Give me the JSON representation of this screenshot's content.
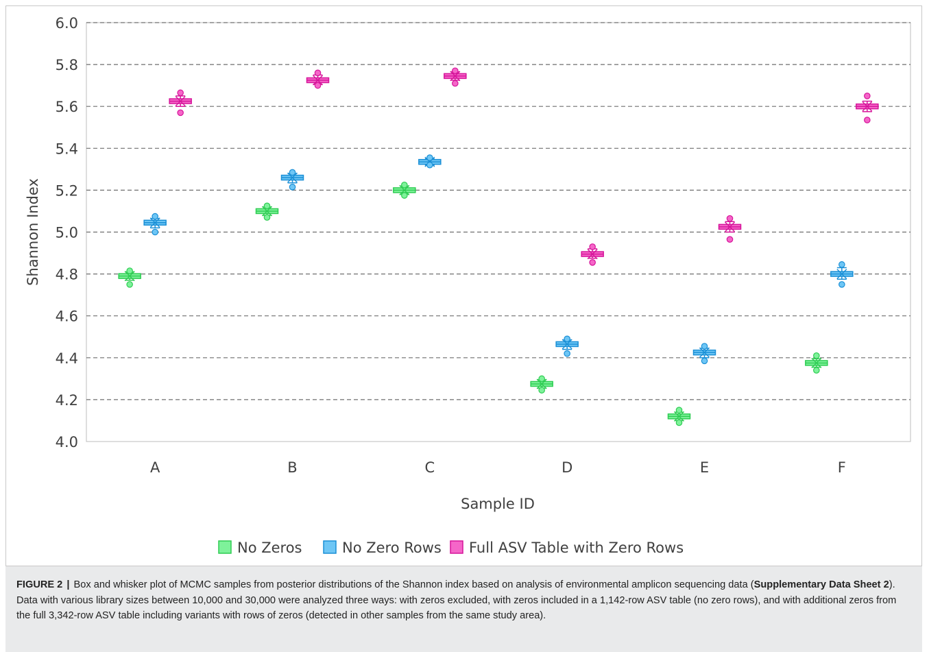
{
  "chart_data": {
    "type": "box",
    "title": "",
    "xlabel": "Sample ID",
    "ylabel": "Shannon Index",
    "ylim": [
      4.0,
      6.0
    ],
    "yticks": [
      "4.0",
      "4.2",
      "4.4",
      "4.6",
      "4.8",
      "5.0",
      "5.2",
      "5.4",
      "5.6",
      "5.8",
      "6.0"
    ],
    "categories": [
      "A",
      "B",
      "C",
      "D",
      "E",
      "F"
    ],
    "grid": "horizontal-dashed",
    "legend_position": "bottom",
    "series": [
      {
        "name": "No Zeros",
        "color": "#2ecc52",
        "fill": "#7ef29a",
        "medians": [
          4.79,
          5.1,
          5.2,
          4.275,
          4.12,
          4.375
        ],
        "whisker_low": [
          4.77,
          5.08,
          5.18,
          4.255,
          4.1,
          4.355
        ],
        "whisker_high": [
          4.81,
          5.12,
          5.22,
          4.295,
          4.14,
          4.395
        ],
        "outlier_low": [
          4.75,
          5.07,
          5.175,
          4.245,
          4.09,
          4.34
        ],
        "outlier_high": [
          4.815,
          5.125,
          5.225,
          4.3,
          4.15,
          4.41
        ]
      },
      {
        "name": "No Zero Rows",
        "color": "#1a8fd6",
        "fill": "#6ec6f5",
        "medians": [
          5.045,
          5.26,
          5.335,
          4.465,
          4.425,
          4.8
        ],
        "whisker_low": [
          5.02,
          5.235,
          5.32,
          4.44,
          4.4,
          4.775
        ],
        "whisker_high": [
          5.065,
          5.28,
          5.35,
          4.485,
          4.445,
          4.83
        ],
        "outlier_low": [
          5.0,
          5.215,
          5.32,
          4.42,
          4.385,
          4.75
        ],
        "outlier_high": [
          5.075,
          5.285,
          5.355,
          4.49,
          4.455,
          4.845
        ]
      },
      {
        "name": "Full ASV Table with Zero Rows",
        "color": "#d6149a",
        "fill": "#f566c8",
        "medians": [
          5.625,
          5.725,
          5.745,
          4.895,
          5.025,
          5.6
        ],
        "whisker_low": [
          5.6,
          5.705,
          5.725,
          4.875,
          5.0,
          5.575
        ],
        "whisker_high": [
          5.65,
          5.75,
          5.765,
          4.92,
          5.05,
          5.625
        ],
        "outlier_low": [
          5.57,
          5.7,
          5.71,
          4.855,
          4.965,
          5.535
        ],
        "outlier_high": [
          5.665,
          5.76,
          5.77,
          4.93,
          5.065,
          5.65
        ]
      }
    ]
  },
  "caption": {
    "label": "FIGURE 2",
    "separator": "|",
    "text_before": " Box and whisker plot of MCMC samples from posterior distributions of the Shannon index based on analysis of environmental amplicon sequencing data (",
    "bold_ref": "Supplementary Data Sheet 2",
    "text_after": "). Data with various library sizes between 10,000 and 30,000 were analyzed three ways: with zeros excluded, with zeros included in a 1,142-row ASV table (no zero rows), and with additional zeros from the full 3,342-row ASV table including variants with rows of zeros (detected in other samples from the same study area)."
  }
}
